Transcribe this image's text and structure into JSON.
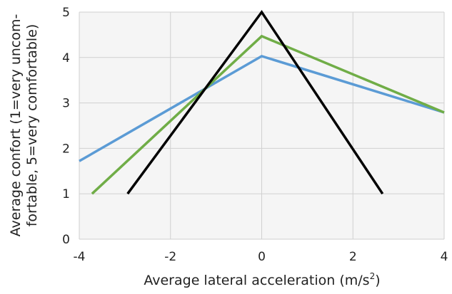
{
  "chart_data": {
    "type": "line",
    "title": "",
    "xlabel": "Average lateral acceleration (m/s²)",
    "xlabel_main": "Average lateral acceleration (m/s",
    "xlabel_sup": "2",
    "xlabel_end": ")",
    "ylabel_lines": [
      "Average confort (1=very uncom-",
      "fortable, 5=very comfortable)"
    ],
    "xlim": [
      -4,
      4
    ],
    "ylim": [
      0,
      5
    ],
    "xticks": [
      -4,
      -2,
      0,
      2,
      4
    ],
    "yticks": [
      0,
      1,
      2,
      3,
      4,
      5
    ],
    "xtick_labels": [
      "-4",
      "-2",
      "0",
      "2",
      "4"
    ],
    "ytick_labels": [
      "0",
      "1",
      "2",
      "3",
      "4",
      "5"
    ],
    "grid": true,
    "legend": "none",
    "plot_background": "#f5f5f5",
    "grid_color": "#d0d0d0",
    "series": [
      {
        "name": "blue",
        "color": "#5b9bd5",
        "x": [
          -4,
          0,
          4
        ],
        "y": [
          1.72,
          4.03,
          2.79
        ]
      },
      {
        "name": "green",
        "color": "#70ad47",
        "x": [
          -3.72,
          0,
          4
        ],
        "y": [
          1.0,
          4.47,
          2.79
        ]
      },
      {
        "name": "black",
        "color": "#000000",
        "x": [
          -2.94,
          0,
          2.65
        ],
        "y": [
          1.0,
          5.0,
          1.0
        ]
      }
    ]
  }
}
